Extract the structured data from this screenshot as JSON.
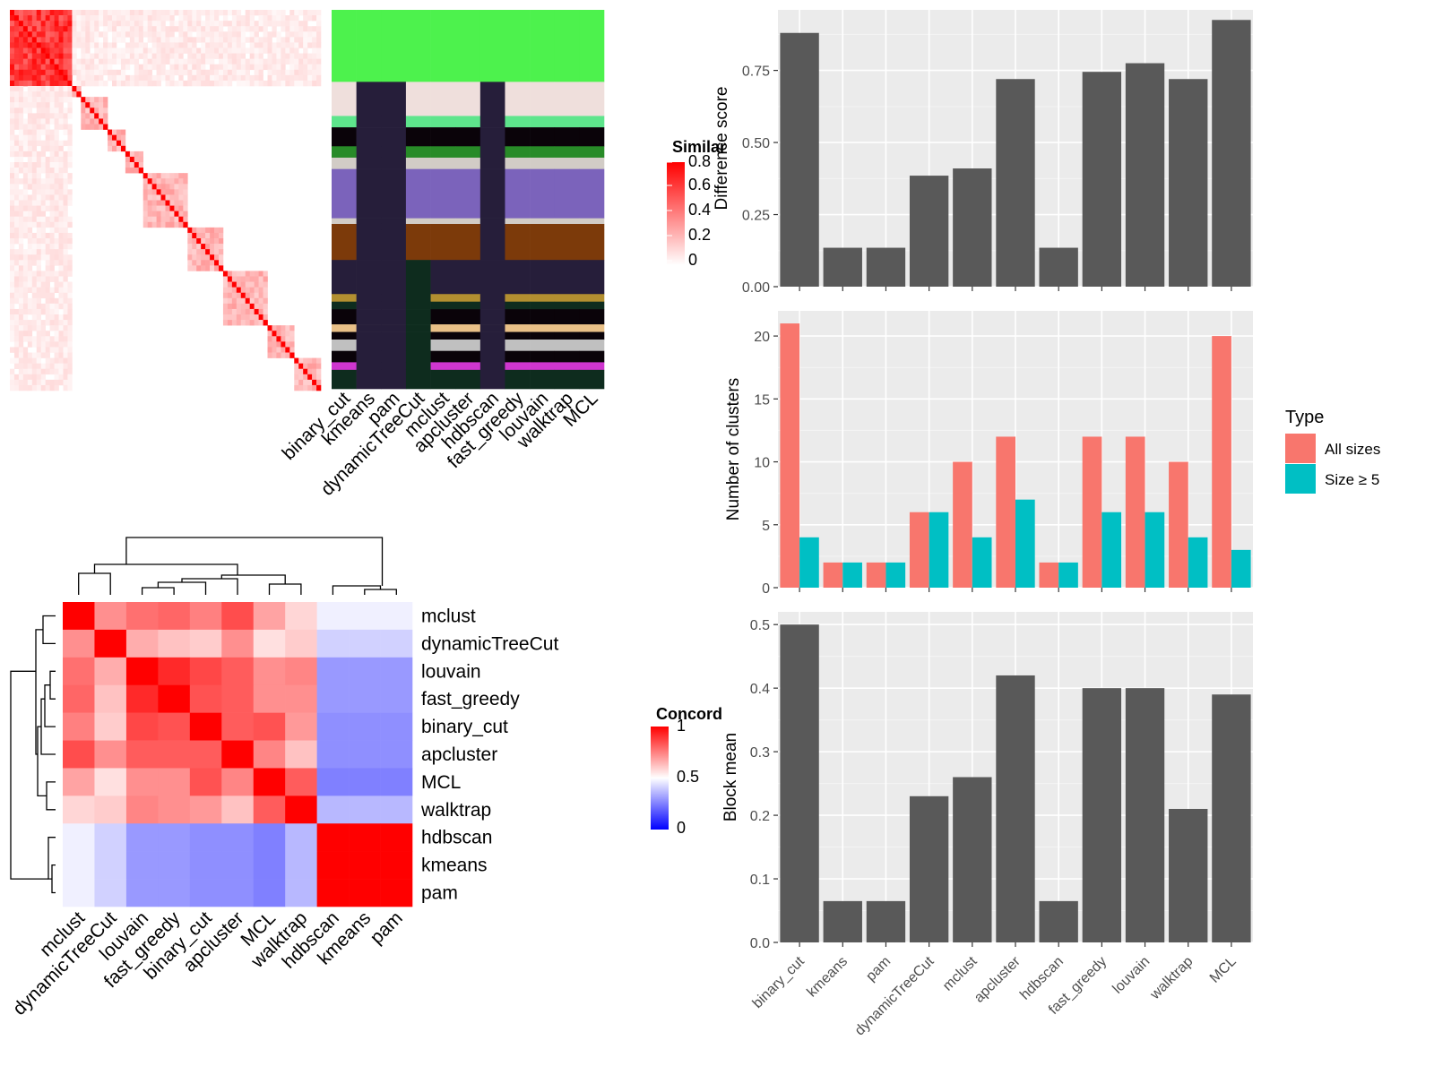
{
  "similarity_heatmap": {
    "legend_title": "Similar",
    "legend_ticks": [
      "0.8",
      "0.6",
      "0.4",
      "0.2",
      "0"
    ],
    "palette": {
      "high": "#ff0000",
      "low": "#ffffff"
    }
  },
  "cluster_assignment_map": {
    "methods": [
      "binary_cut",
      "kmeans",
      "pam",
      "dynamicTreeCut",
      "mclust",
      "apcluster",
      "hdbscan",
      "fast_greedy",
      "louvain",
      "walktrap",
      "MCL"
    ]
  },
  "concordance_heatmap": {
    "legend_title": "Concord",
    "legend_ticks": [
      "1",
      "0.5",
      "0"
    ],
    "palette": {
      "high": "#ff0000",
      "mid": "#ffffff",
      "low": "#0000ff"
    },
    "methods": [
      "mclust",
      "dynamicTreeCut",
      "louvain",
      "fast_greedy",
      "binary_cut",
      "apcluster",
      "MCL",
      "walktrap",
      "hdbscan",
      "kmeans",
      "pam"
    ]
  },
  "bar_colors": {
    "dark": "#595959",
    "all_sizes": "#F8766D",
    "size_ge5": "#00BFC4"
  },
  "chart_data": [
    {
      "type": "heatmap",
      "title": "",
      "legend_title": "Concord",
      "rows": [
        "mclust",
        "dynamicTreeCut",
        "louvain",
        "fast_greedy",
        "binary_cut",
        "apcluster",
        "MCL",
        "walktrap",
        "hdbscan",
        "kmeans",
        "pam"
      ],
      "columns": [
        "mclust",
        "dynamicTreeCut",
        "louvain",
        "fast_greedy",
        "binary_cut",
        "apcluster",
        "MCL",
        "walktrap",
        "hdbscan",
        "kmeans",
        "pam"
      ],
      "values": [
        [
          1.0,
          0.72,
          0.78,
          0.8,
          0.75,
          0.85,
          0.68,
          0.58,
          0.47,
          0.47,
          0.47
        ],
        [
          0.72,
          1.0,
          0.66,
          0.62,
          0.6,
          0.72,
          0.56,
          0.6,
          0.41,
          0.41,
          0.41
        ],
        [
          0.78,
          0.66,
          1.0,
          0.92,
          0.86,
          0.82,
          0.72,
          0.74,
          0.3,
          0.3,
          0.3
        ],
        [
          0.8,
          0.62,
          0.92,
          1.0,
          0.84,
          0.82,
          0.72,
          0.72,
          0.3,
          0.3,
          0.3
        ],
        [
          0.75,
          0.6,
          0.86,
          0.84,
          1.0,
          0.82,
          0.84,
          0.7,
          0.28,
          0.28,
          0.28
        ],
        [
          0.85,
          0.72,
          0.82,
          0.82,
          0.82,
          1.0,
          0.74,
          0.62,
          0.28,
          0.28,
          0.28
        ],
        [
          0.68,
          0.56,
          0.72,
          0.72,
          0.84,
          0.74,
          1.0,
          0.82,
          0.25,
          0.25,
          0.25
        ],
        [
          0.58,
          0.6,
          0.74,
          0.72,
          0.7,
          0.62,
          0.82,
          1.0,
          0.36,
          0.36,
          0.36
        ],
        [
          0.47,
          0.41,
          0.3,
          0.3,
          0.28,
          0.28,
          0.25,
          0.36,
          1.0,
          1.0,
          1.0
        ],
        [
          0.47,
          0.41,
          0.3,
          0.3,
          0.28,
          0.28,
          0.25,
          0.36,
          1.0,
          1.0,
          1.0
        ],
        [
          0.47,
          0.41,
          0.3,
          0.3,
          0.28,
          0.28,
          0.25,
          0.36,
          1.0,
          1.0,
          1.0
        ]
      ],
      "range": [
        0,
        1
      ]
    },
    {
      "type": "bar",
      "title": "",
      "xlabel": "",
      "ylabel": "Difference score",
      "categories": [
        "binary_cut",
        "kmeans",
        "pam",
        "dynamicTreeCut",
        "mclust",
        "apcluster",
        "hdbscan",
        "fast_greedy",
        "louvain",
        "walktrap",
        "MCL"
      ],
      "values": [
        0.88,
        0.135,
        0.135,
        0.385,
        0.41,
        0.72,
        0.135,
        0.745,
        0.775,
        0.72,
        0.925
      ],
      "ylim": [
        0,
        0.96
      ],
      "yticks": [
        "0.00",
        "0.25",
        "0.50",
        "0.75"
      ],
      "grid": true
    },
    {
      "type": "bar",
      "title": "",
      "xlabel": "",
      "ylabel": "Number of clusters",
      "categories": [
        "binary_cut",
        "kmeans",
        "pam",
        "dynamicTreeCut",
        "mclust",
        "apcluster",
        "hdbscan",
        "fast_greedy",
        "louvain",
        "walktrap",
        "MCL"
      ],
      "series": [
        {
          "name": "All sizes",
          "values": [
            21,
            2,
            2,
            6,
            10,
            12,
            2,
            12,
            12,
            10,
            20
          ]
        },
        {
          "name": "Size ≥ 5",
          "values": [
            4,
            2,
            2,
            6,
            4,
            7,
            2,
            6,
            6,
            4,
            3
          ]
        }
      ],
      "legend_title": "Type",
      "legend": "right",
      "ylim": [
        0,
        22
      ],
      "yticks": [
        "0",
        "5",
        "10",
        "15",
        "20"
      ],
      "grid": true
    },
    {
      "type": "bar",
      "title": "",
      "xlabel": "",
      "ylabel": "Block mean",
      "categories": [
        "binary_cut",
        "kmeans",
        "pam",
        "dynamicTreeCut",
        "mclust",
        "apcluster",
        "hdbscan",
        "fast_greedy",
        "louvain",
        "walktrap",
        "MCL"
      ],
      "values": [
        0.5,
        0.065,
        0.065,
        0.23,
        0.26,
        0.42,
        0.065,
        0.4,
        0.4,
        0.21,
        0.39
      ],
      "ylim": [
        0,
        0.52
      ],
      "yticks": [
        "0.0",
        "0.1",
        "0.2",
        "0.3",
        "0.4",
        "0.5"
      ],
      "grid": true
    }
  ]
}
